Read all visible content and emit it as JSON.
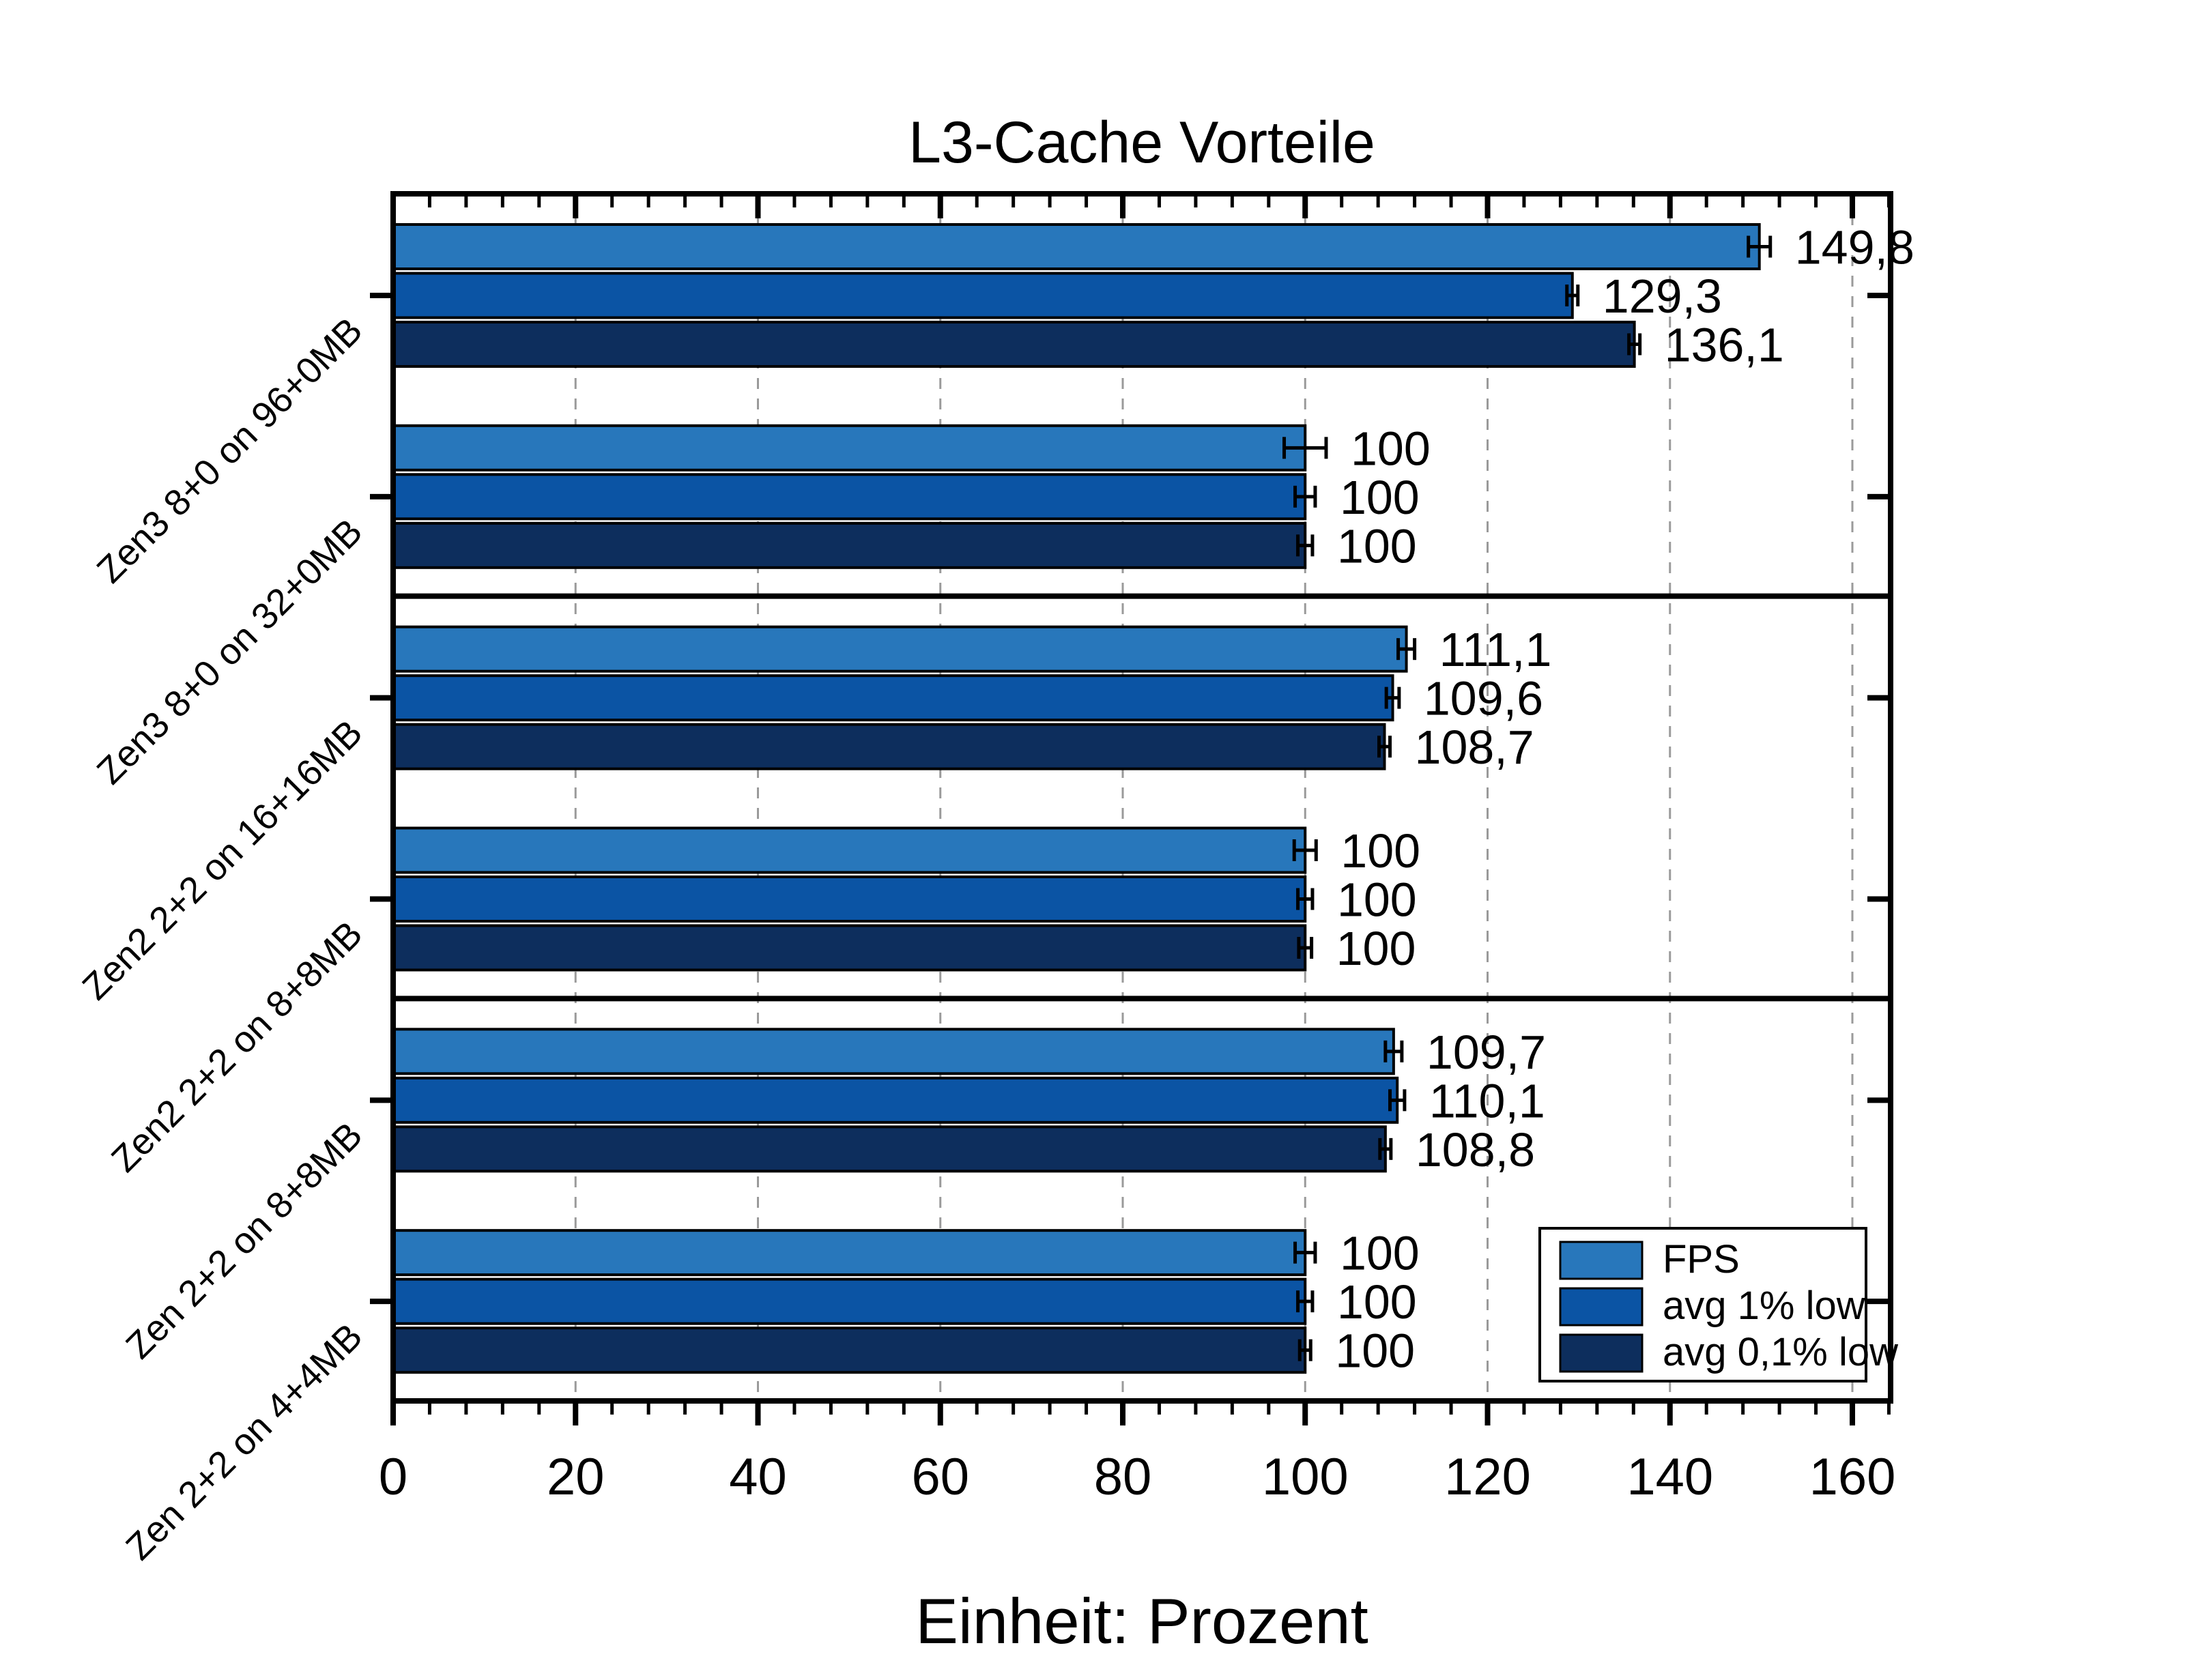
{
  "page_title": "L3-Cache Vorteile",
  "chart_data": {
    "type": "bar",
    "orientation": "horizontal",
    "title": "L3-Cache Vorteile",
    "xlabel": "Einheit: Prozent",
    "x_axis": {
      "min": 0,
      "max": 164,
      "major_tick_step": 20,
      "minor_tick_step": 4,
      "tick_labels": [
        "0",
        "20",
        "40",
        "60",
        "80",
        "100",
        "120",
        "140",
        "160"
      ]
    },
    "grid": {
      "vertical_at_major_ticks": true,
      "style": "dashed",
      "color": "#9a9a9a"
    },
    "series": [
      {
        "name": "FPS",
        "color": "#2877BB"
      },
      {
        "name": "avg 1% low",
        "color": "#0B54A4"
      },
      {
        "name": "avg 0,1% low",
        "color": "#0D2E5D"
      }
    ],
    "panels": [
      {
        "groups": [
          {
            "category": "Zen3 8+0 on 96+0MB",
            "values": [
              149.8,
              129.3,
              136.1
            ],
            "labels": [
              "149,8",
              "129,3",
              "136,1"
            ],
            "errors": [
              1.2,
              0.6,
              0.6
            ]
          },
          {
            "category": "Zen3 8+0 on 32+0MB",
            "values": [
              100,
              100,
              100
            ],
            "labels": [
              "100",
              "100",
              "100"
            ],
            "errors": [
              2.3,
              1.1,
              0.8
            ]
          }
        ]
      },
      {
        "groups": [
          {
            "category": "Zen2 2+2 on 16+16MB",
            "values": [
              111.1,
              109.6,
              108.7
            ],
            "labels": [
              "111,1",
              "109,6",
              "108,7"
            ],
            "errors": [
              0.9,
              0.7,
              0.6
            ]
          },
          {
            "category": "Zen2 2+2 on 8+8MB",
            "values": [
              100,
              100,
              100
            ],
            "labels": [
              "100",
              "100",
              "100"
            ],
            "errors": [
              1.2,
              0.8,
              0.7
            ]
          }
        ]
      },
      {
        "groups": [
          {
            "category": "Zen 2+2 on 8+8MB",
            "values": [
              109.7,
              110.1,
              108.8
            ],
            "labels": [
              "109,7",
              "110,1",
              "108,8"
            ],
            "errors": [
              0.9,
              0.8,
              0.6
            ]
          },
          {
            "category": "Zen 2+2 on 4+4MB",
            "values": [
              100,
              100,
              100
            ],
            "labels": [
              "100",
              "100",
              "100"
            ],
            "errors": [
              1.1,
              0.8,
              0.6
            ]
          }
        ]
      }
    ],
    "legend": {
      "position": "bottom-right",
      "entries": [
        "FPS",
        "avg 1% low",
        "avg 0,1% low"
      ]
    }
  },
  "colors": {
    "axis": "#000000",
    "bar_border": "#000000",
    "error_bar": "#000000",
    "grid": "#9a9a9a",
    "background": "#ffffff",
    "legend_border": "#000000"
  }
}
